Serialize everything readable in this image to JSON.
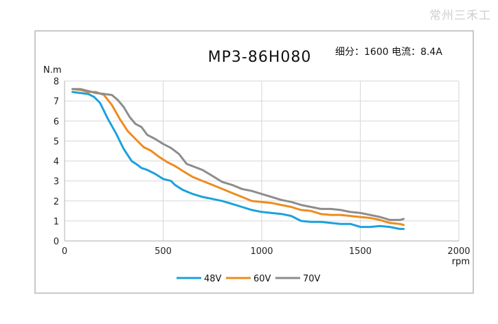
{
  "watermark": "常州三禾工",
  "chart_data": {
    "type": "line",
    "title": "MP3-86H080",
    "subtitle": "细分：1600 电流：8.4A",
    "ylabel": "N.m",
    "xlabel": "rpm",
    "xlim": [
      0,
      2000
    ],
    "ylim": [
      0,
      8
    ],
    "x_ticks": [
      "0",
      "500",
      "1000",
      "1500",
      "2000"
    ],
    "y_ticks": [
      "0",
      "1",
      "2",
      "3",
      "4",
      "5",
      "6",
      "7",
      "8"
    ],
    "grid": true,
    "legend_position": "bottom-center",
    "series": [
      {
        "name": "48V",
        "color": "#1ba1dc",
        "x": [
          40,
          80,
          120,
          150,
          180,
          220,
          260,
          300,
          340,
          370,
          390,
          420,
          460,
          500,
          540,
          560,
          600,
          650,
          700,
          750,
          800,
          850,
          900,
          950,
          1000,
          1050,
          1100,
          1150,
          1200,
          1250,
          1300,
          1350,
          1400,
          1450,
          1500,
          1550,
          1600,
          1650,
          1700,
          1720
        ],
        "values": [
          7.45,
          7.4,
          7.35,
          7.2,
          6.9,
          6.1,
          5.4,
          4.6,
          4.0,
          3.8,
          3.65,
          3.55,
          3.35,
          3.1,
          3.0,
          2.8,
          2.55,
          2.35,
          2.2,
          2.1,
          2.0,
          1.85,
          1.7,
          1.55,
          1.45,
          1.4,
          1.35,
          1.25,
          1.0,
          0.95,
          0.95,
          0.9,
          0.85,
          0.85,
          0.7,
          0.7,
          0.75,
          0.7,
          0.6,
          0.6
        ]
      },
      {
        "name": "60V",
        "color": "#ee8b1e",
        "x": [
          40,
          80,
          120,
          160,
          200,
          240,
          280,
          320,
          360,
          400,
          440,
          480,
          520,
          560,
          600,
          650,
          700,
          750,
          800,
          850,
          900,
          950,
          1000,
          1050,
          1100,
          1150,
          1200,
          1250,
          1300,
          1350,
          1400,
          1450,
          1500,
          1550,
          1600,
          1650,
          1700,
          1720
        ],
        "values": [
          7.6,
          7.55,
          7.45,
          7.45,
          7.3,
          6.8,
          6.1,
          5.5,
          5.1,
          4.7,
          4.5,
          4.2,
          3.95,
          3.75,
          3.5,
          3.2,
          3.0,
          2.8,
          2.6,
          2.4,
          2.2,
          2.0,
          1.95,
          1.9,
          1.8,
          1.7,
          1.55,
          1.5,
          1.35,
          1.3,
          1.3,
          1.25,
          1.2,
          1.15,
          1.05,
          0.9,
          0.85,
          0.8
        ]
      },
      {
        "name": "70V",
        "color": "#8c8c8c",
        "x": [
          40,
          80,
          120,
          160,
          200,
          240,
          270,
          300,
          330,
          360,
          390,
          420,
          460,
          500,
          540,
          580,
          620,
          660,
          700,
          750,
          800,
          850,
          900,
          950,
          1000,
          1050,
          1100,
          1150,
          1200,
          1250,
          1300,
          1350,
          1400,
          1450,
          1500,
          1550,
          1600,
          1650,
          1700,
          1720
        ],
        "values": [
          7.6,
          7.6,
          7.5,
          7.4,
          7.35,
          7.3,
          7.05,
          6.7,
          6.2,
          5.85,
          5.7,
          5.3,
          5.1,
          4.85,
          4.65,
          4.35,
          3.85,
          3.7,
          3.55,
          3.25,
          2.95,
          2.8,
          2.6,
          2.5,
          2.35,
          2.2,
          2.05,
          1.95,
          1.8,
          1.7,
          1.6,
          1.6,
          1.55,
          1.45,
          1.4,
          1.3,
          1.2,
          1.05,
          1.05,
          1.1
        ]
      }
    ]
  }
}
